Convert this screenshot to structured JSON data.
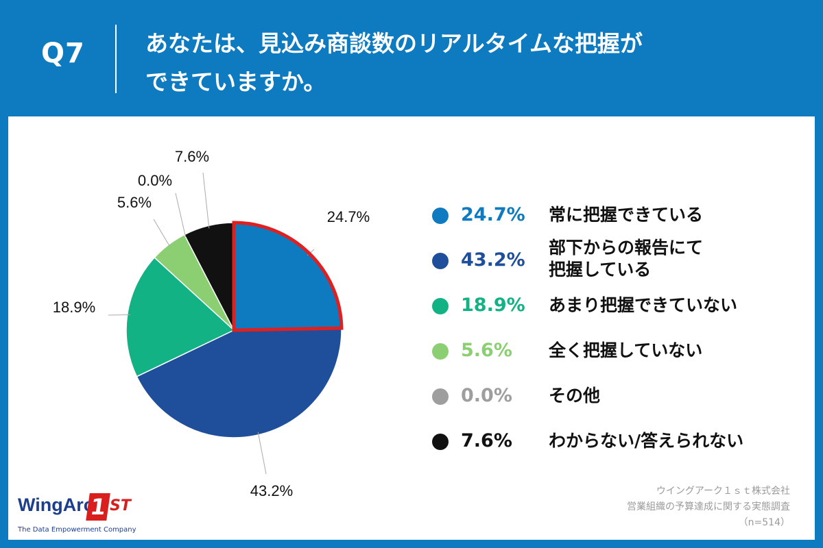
{
  "header": {
    "question_no": "Q7",
    "title_lines": [
      "あなたは、見込み商談数のリアルタイムな把握が",
      "できていますか。"
    ]
  },
  "chart_data": {
    "type": "pie",
    "title": "あなたは、見込み商談数のリアルタイムな把握ができていますか。",
    "unit": "%",
    "highlighted_slice": "常に把握できている",
    "highlight_color": "#e02020",
    "slices": [
      {
        "label": "常に把握できている",
        "value": 24.7,
        "value_label": "24.7%",
        "color": "#0e7abf",
        "text_color": "#0e7abf"
      },
      {
        "label": "部下からの報告にて把握している",
        "label_lines": [
          "部下からの報告にて",
          "把握している"
        ],
        "value": 43.2,
        "value_label": "43.2%",
        "color": "#1f4e9b",
        "text_color": "#1f4e9b"
      },
      {
        "label": "あまり把握できていない",
        "value": 18.9,
        "value_label": "18.9%",
        "color": "#12b284",
        "text_color": "#12b284"
      },
      {
        "label": "全く把握していない",
        "value": 5.6,
        "value_label": "5.6%",
        "color": "#8ccf72",
        "text_color": "#8ccf72"
      },
      {
        "label": "その他",
        "value": 0.0,
        "value_label": "0.0%",
        "color": "#9e9e9e",
        "text_color": "#9e9e9e"
      },
      {
        "label": "わからない/答えられない",
        "value": 7.6,
        "value_label": "7.6%",
        "color": "#111111",
        "text_color": "#111111"
      }
    ]
  },
  "source": {
    "company": "ウイングアーク１ｓｔ株式会社",
    "survey": "営業組織の予算達成に関する実態調査",
    "sample": "（n=514）"
  },
  "logo": {
    "word": "WingArc",
    "number": "1",
    "suffix": "ST",
    "tagline": "The Data Empowerment Company"
  }
}
